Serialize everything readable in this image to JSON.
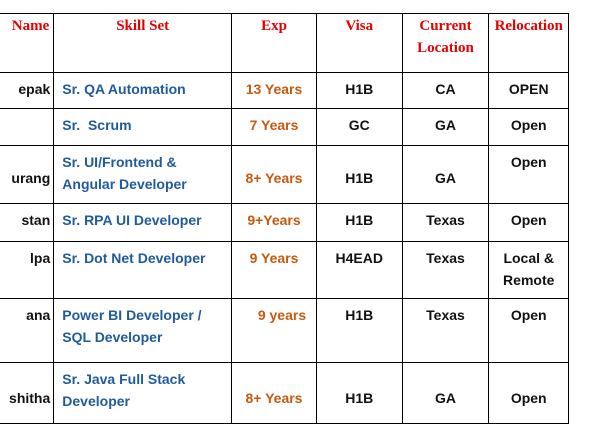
{
  "table": {
    "header": [
      "Name",
      "Skill Set",
      "Exp",
      "Visa",
      [
        "Current",
        "Location"
      ],
      "Relocation"
    ],
    "rows": [
      [
        "epak",
        "Sr. QA Automation",
        "13 Years",
        "H1B",
        "CA",
        "OPEN"
      ],
      [
        "",
        "Sr.  Scrum",
        "7 Years",
        "GC",
        "GA",
        "Open"
      ],
      [
        "urang",
        [
          "Sr. UI/Frontend &",
          "Angular Developer"
        ],
        "8+ Years",
        "H1B",
        "GA",
        "Open"
      ],
      [
        "stan",
        "Sr. RPA UI Developer",
        "9+Years",
        "H1B",
        "Texas",
        "Open"
      ],
      [
        "lpa",
        "Sr. Dot Net Developer",
        "9 Years",
        "H4EAD",
        "Texas",
        [
          "Local &",
          "Remote"
        ]
      ],
      [
        "ana",
        [
          "Power BI Developer /",
          "SQL Developer"
        ],
        "9 years",
        "H1B",
        "Texas",
        "Open"
      ],
      [
        "shitha",
        [
          "Sr. Java Full Stack",
          "Developer"
        ],
        "8+ Years",
        "H1B",
        "GA",
        "Open"
      ]
    ]
  }
}
